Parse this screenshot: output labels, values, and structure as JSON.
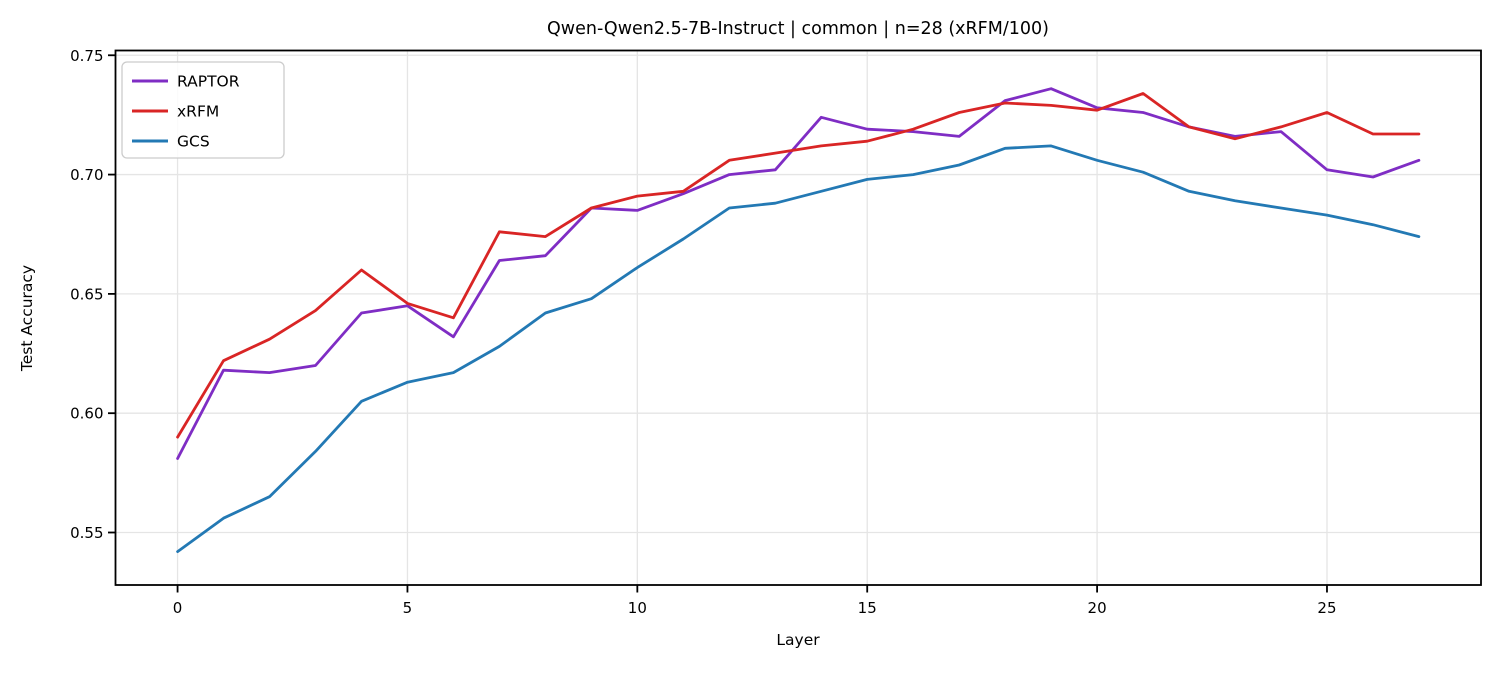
{
  "chart_data": {
    "type": "line",
    "title": "Qwen-Qwen2.5-7B-Instruct | common | n=28 (xRFM/100)",
    "xlabel": "Layer",
    "ylabel": "Test Accuracy",
    "x": [
      0,
      1,
      2,
      3,
      4,
      5,
      6,
      7,
      8,
      9,
      10,
      11,
      12,
      13,
      14,
      15,
      16,
      17,
      18,
      19,
      20,
      21,
      22,
      23,
      24,
      25,
      26,
      27
    ],
    "series": [
      {
        "name": "RAPTOR",
        "color": "#7f2dc4",
        "values": [
          0.581,
          0.618,
          0.617,
          0.62,
          0.642,
          0.645,
          0.632,
          0.664,
          0.666,
          0.686,
          0.685,
          0.692,
          0.7,
          0.702,
          0.724,
          0.719,
          0.718,
          0.716,
          0.731,
          0.736,
          0.728,
          0.726,
          0.72,
          0.716,
          0.718,
          0.702,
          0.699,
          0.706
        ]
      },
      {
        "name": "xRFM",
        "color": "#d92525",
        "values": [
          0.59,
          0.622,
          0.631,
          0.643,
          0.66,
          0.646,
          0.64,
          0.676,
          0.674,
          0.686,
          0.691,
          0.693,
          0.706,
          0.709,
          0.712,
          0.714,
          0.719,
          0.726,
          0.73,
          0.729,
          0.727,
          0.734,
          0.72,
          0.715,
          0.72,
          0.726,
          0.717,
          0.717
        ]
      },
      {
        "name": "GCS",
        "color": "#2379b4",
        "values": [
          0.542,
          0.556,
          0.565,
          0.584,
          0.605,
          0.613,
          0.617,
          0.628,
          0.642,
          0.648,
          0.661,
          0.673,
          0.686,
          0.688,
          0.693,
          0.698,
          0.7,
          0.704,
          0.711,
          0.712,
          0.706,
          0.701,
          0.693,
          0.689,
          0.686,
          0.683,
          0.679,
          0.674
        ]
      }
    ],
    "xlim": [
      -1.35,
      28.35
    ],
    "ylim": [
      0.528,
      0.752
    ],
    "x_ticks": [
      0,
      5,
      10,
      15,
      20,
      25
    ],
    "y_ticks": [
      0.55,
      0.6,
      0.65,
      0.7,
      0.75
    ],
    "y_tick_labels": [
      "0.55",
      "0.60",
      "0.65",
      "0.70",
      "0.75"
    ],
    "grid": true,
    "legend_position": "upper left",
    "grid_color": "#e5e5e5",
    "spine_color": "#000000"
  }
}
